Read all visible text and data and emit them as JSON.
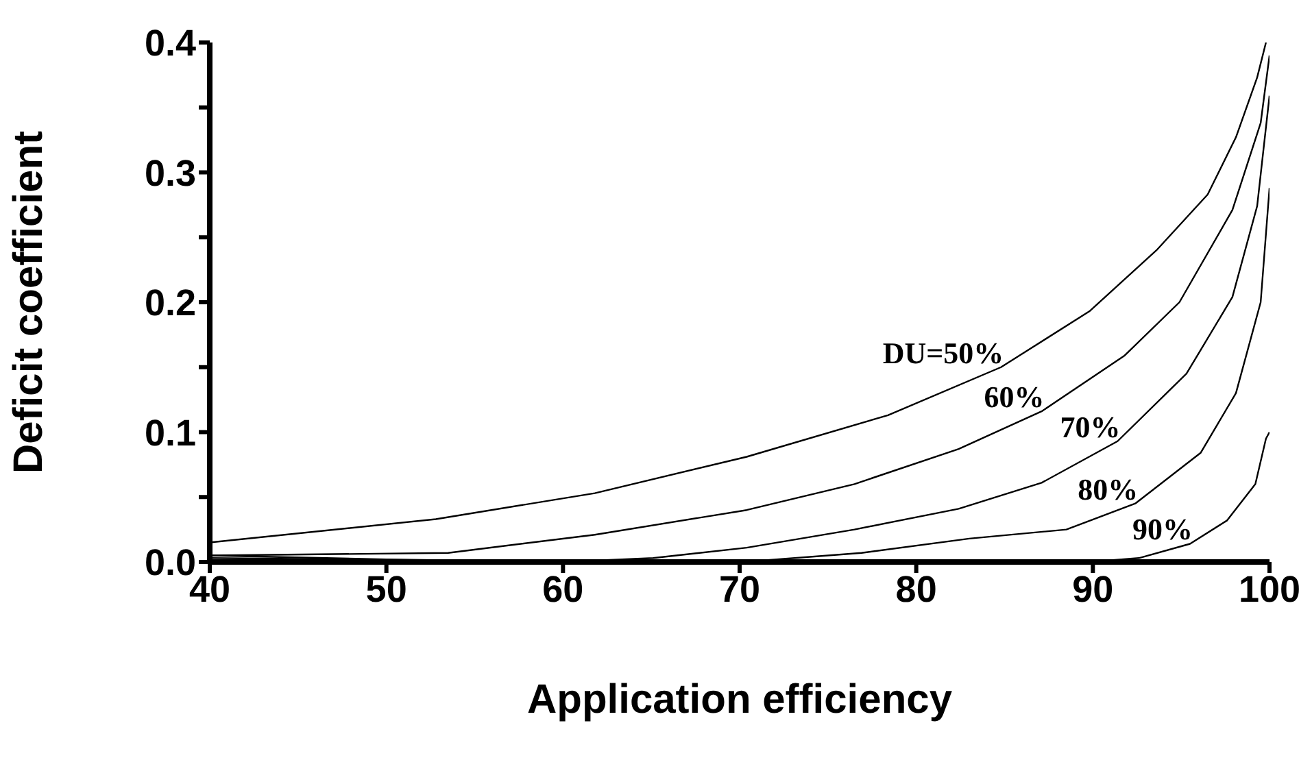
{
  "chart_data": {
    "type": "line",
    "xlabel": "Application efficiency",
    "ylabel": "Deficit coefficient",
    "xlim": [
      40,
      100
    ],
    "xticks": [
      40,
      50,
      60,
      70,
      80,
      90,
      100
    ],
    "ylim": [
      0,
      0.4
    ],
    "yticks": [
      {
        "value": 0,
        "label": "0.0"
      },
      {
        "value": 0.05,
        "label": null
      },
      {
        "value": 0.1,
        "label": "0.1"
      },
      {
        "value": 0.15,
        "label": null
      },
      {
        "value": 0.2,
        "label": "0.2"
      },
      {
        "value": 0.25,
        "label": null
      },
      {
        "value": 0.3,
        "label": "0.3"
      },
      {
        "value": 0.35,
        "label": null
      },
      {
        "value": 0.4,
        "label": "0.4"
      }
    ],
    "marker": "none",
    "line_style": "solid",
    "series": [
      {
        "name": "DU=50%",
        "color": "#000000",
        "x": [
          40,
          52.8,
          61.8,
          70.4,
          78.4,
          84.8,
          89.8,
          93.6,
          96.5,
          98.1,
          99.3,
          99.8
        ],
        "values": [
          0.015,
          0.033,
          0.053,
          0.081,
          0.113,
          0.15,
          0.193,
          0.24,
          0.283,
          0.327,
          0.373,
          0.4
        ]
      },
      {
        "name": "60%",
        "color": "#000000",
        "x": [
          40,
          53.5,
          61.8,
          70.4,
          76.5,
          82.4,
          87.1,
          91.8,
          94.9,
          97.9,
          99.5,
          100
        ],
        "values": [
          0.005,
          0.007,
          0.021,
          0.04,
          0.06,
          0.087,
          0.116,
          0.159,
          0.2,
          0.271,
          0.338,
          0.39
        ]
      },
      {
        "name": "70%",
        "color": "#000000",
        "x": [
          40,
          50,
          60,
          65.1,
          70.4,
          76.5,
          82.4,
          87.1,
          91.4,
          95.3,
          97.9,
          99.3,
          100
        ],
        "values": [
          0.005,
          0.002,
          0,
          0.003,
          0.011,
          0.025,
          0.041,
          0.061,
          0.093,
          0.145,
          0.204,
          0.274,
          0.359
        ]
      },
      {
        "name": "80%",
        "color": "#000000",
        "x": [
          40,
          55,
          70.2,
          76.9,
          83,
          88.5,
          92.4,
          96.1,
          98.1,
          99.5,
          100
        ],
        "values": [
          0.003,
          0.001,
          0,
          0.007,
          0.018,
          0.025,
          0.045,
          0.084,
          0.13,
          0.2,
          0.288
        ]
      },
      {
        "name": "90%",
        "color": "#000000",
        "x": [
          40,
          87,
          89.8,
          92.6,
          95.5,
          97.6,
          99.2,
          99.8,
          100
        ],
        "values": [
          0,
          0,
          0,
          0.003,
          0.014,
          0.032,
          0.06,
          0.095,
          0.1
        ]
      }
    ]
  }
}
